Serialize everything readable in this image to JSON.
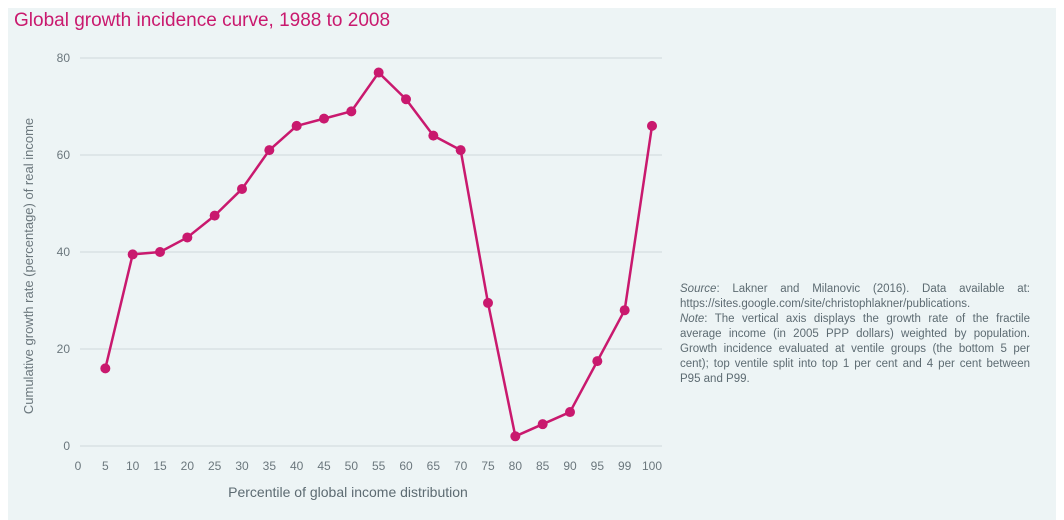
{
  "colors": {
    "series": "#c9196e",
    "grid": "#cfd8db",
    "text": "#6b777d",
    "background": "#edf4f5"
  },
  "chart_data": {
    "type": "line",
    "title": "Global growth incidence curve, 1988 to 2008",
    "xlabel": "Percentile of global income distribution",
    "ylabel": "Cumulative growth rate (percentage) of real income",
    "ylim": [
      0,
      80
    ],
    "yticks": [
      "0",
      "20",
      "40",
      "60",
      "80"
    ],
    "xticks": [
      "0",
      "5",
      "10",
      "15",
      "20",
      "25",
      "30",
      "35",
      "40",
      "45",
      "50",
      "55",
      "60",
      "65",
      "70",
      "75",
      "80",
      "85",
      "90",
      "95",
      "99",
      "100"
    ],
    "grid": "horizontal",
    "x": [
      5,
      10,
      15,
      20,
      25,
      30,
      35,
      40,
      45,
      50,
      55,
      60,
      65,
      70,
      75,
      80,
      85,
      90,
      95,
      99,
      100
    ],
    "values": [
      16,
      39.5,
      40,
      43,
      47.5,
      53,
      61,
      66,
      67.5,
      69,
      77,
      71.5,
      64,
      61,
      29.5,
      2,
      4.5,
      7,
      17.5,
      28,
      66
    ]
  },
  "notes": {
    "source_label": "Source",
    "source_text": ": Lakner and Milanovic (2016). Data available at: https://sites.google.com/site/christophlakner/publications.",
    "note_label": "Note",
    "note_text": ": The vertical axis displays the growth rate of the fractile average income (in 2005 PPP dollars) weighted by population. Growth incidence evaluated at ventile groups (the bottom 5 per cent); top ventile split into top 1 per cent and 4 per cent between P95 and P99."
  }
}
